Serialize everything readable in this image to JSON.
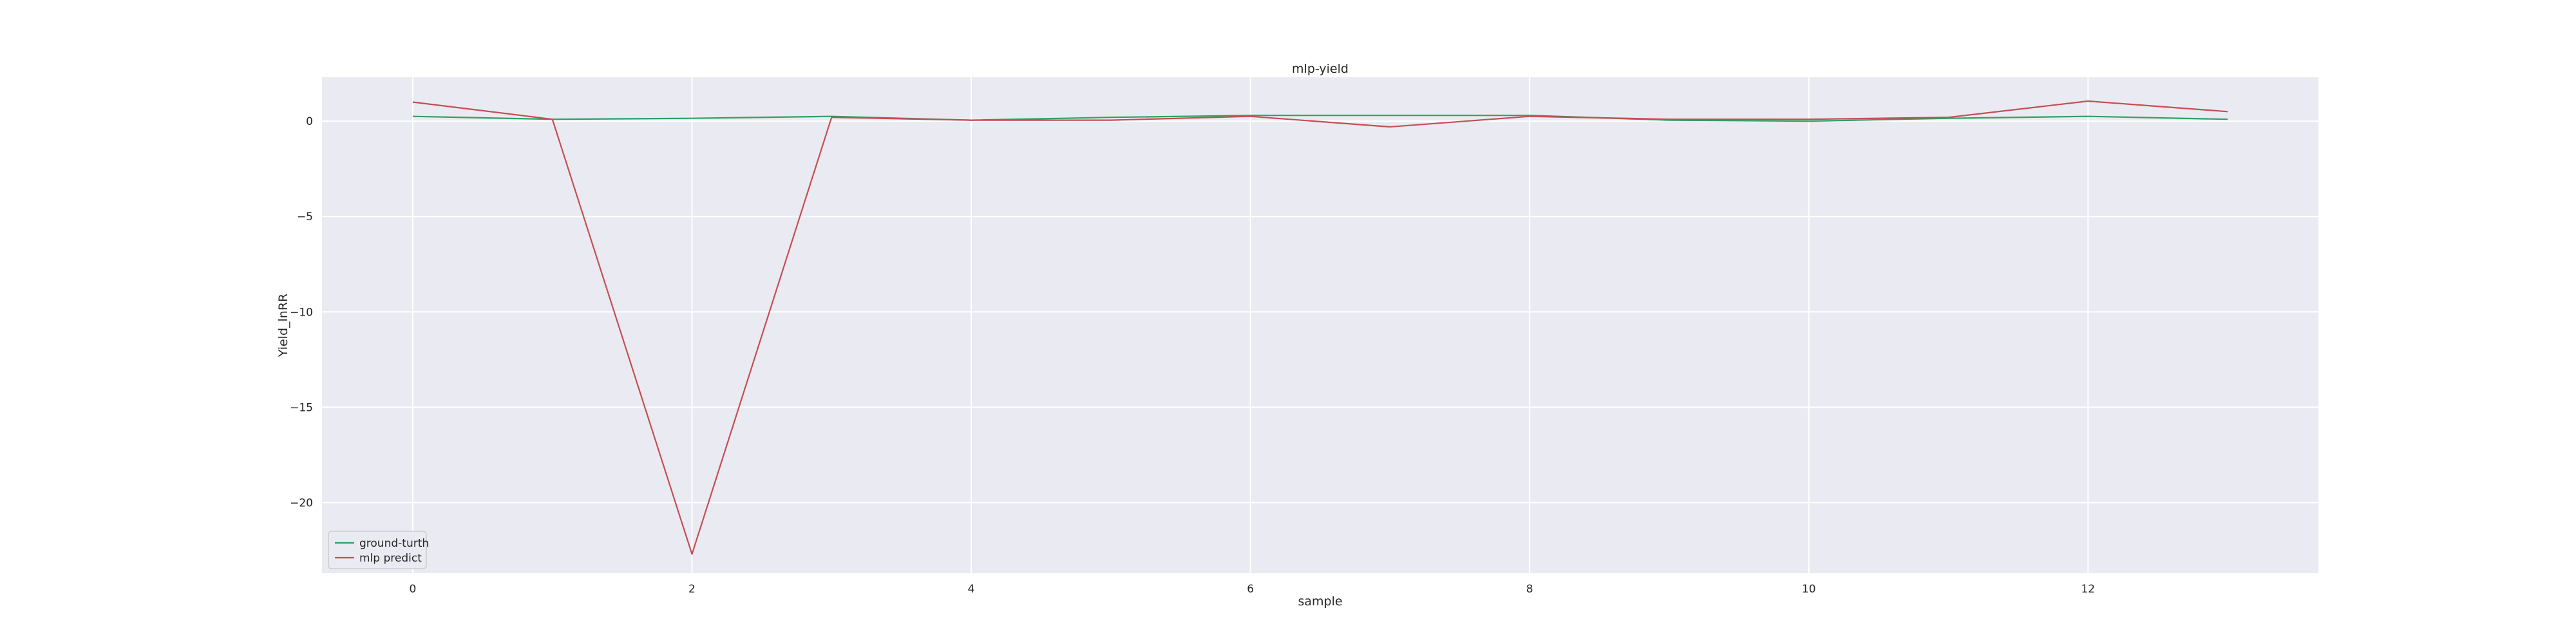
{
  "chart_data": {
    "type": "line",
    "title": "mlp-yield",
    "xlabel": "sample",
    "ylabel": "Yield_lnRR",
    "x": [
      0,
      1,
      2,
      3,
      4,
      5,
      6,
      7,
      8,
      9,
      10,
      11,
      12,
      13
    ],
    "xlim": [
      -0.65,
      13.65
    ],
    "ylim": [
      -23.7,
      2.3
    ],
    "xticks": [
      0,
      2,
      4,
      6,
      8,
      10,
      12
    ],
    "yticks": [
      0,
      -5,
      -10,
      -15,
      -20
    ],
    "ytick_labels": [
      "0",
      "−5",
      "−10",
      "−15",
      "−20"
    ],
    "grid": true,
    "legend_position": "lower-left",
    "series": [
      {
        "name": "ground-turth",
        "color": "#2ca25f",
        "values": [
          0.25,
          0.1,
          0.15,
          0.25,
          0.05,
          0.2,
          0.3,
          0.3,
          0.3,
          0.05,
          0.0,
          0.15,
          0.25,
          0.1
        ]
      },
      {
        "name": "mlp predict",
        "color": "#c44e52",
        "values": [
          1.0,
          0.1,
          -22.7,
          0.2,
          0.05,
          0.05,
          0.25,
          -0.3,
          0.25,
          0.1,
          0.1,
          0.2,
          1.05,
          0.5
        ]
      }
    ]
  }
}
